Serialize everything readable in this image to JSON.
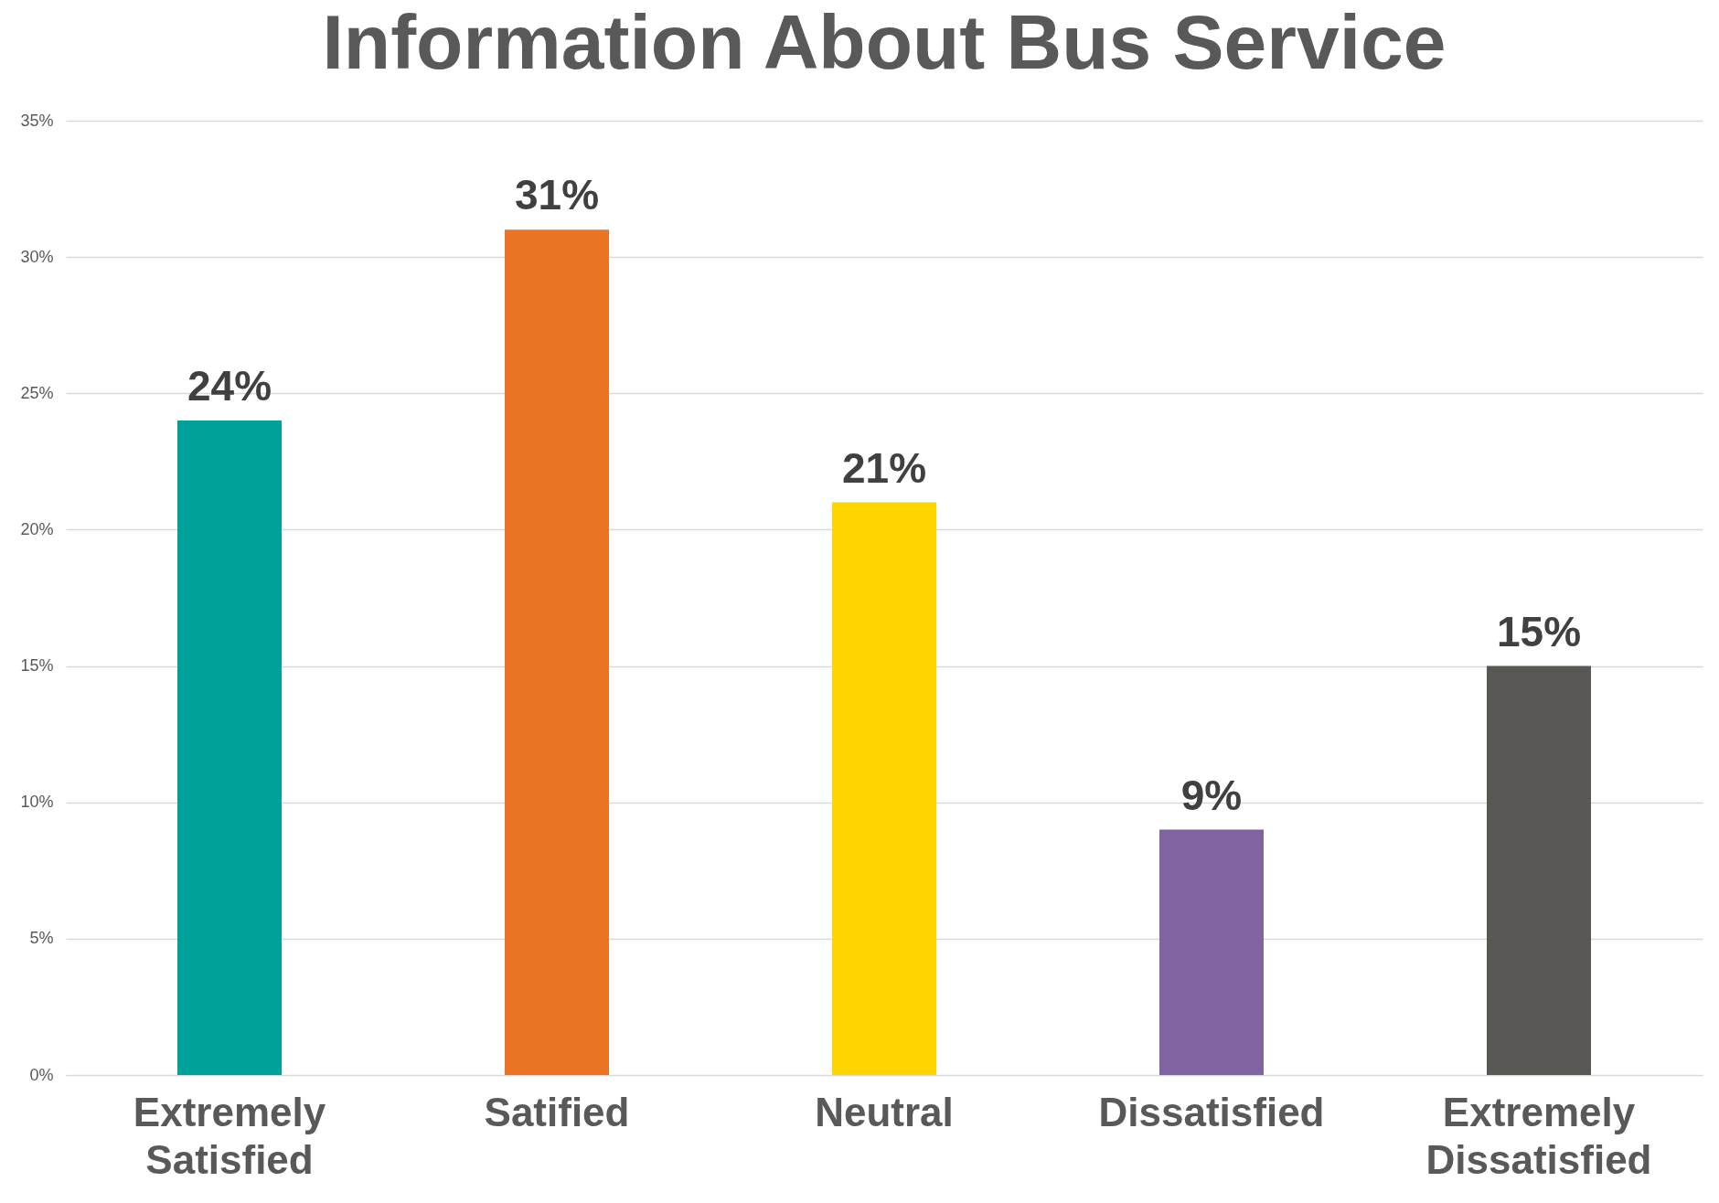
{
  "chart_data": {
    "type": "bar",
    "title": "Information About Bus Service",
    "categories": [
      "Extremely Satisfied",
      "Satified",
      "Neutral",
      "Dissatisfied",
      "Extremely Dissatisfied"
    ],
    "values": [
      24,
      31,
      21,
      9,
      15
    ],
    "value_labels": [
      "24%",
      "31%",
      "21%",
      "9%",
      "15%"
    ],
    "colors": [
      "#00a19a",
      "#e87424",
      "#ffd500",
      "#8064a2",
      "#595855"
    ],
    "ylim": [
      0,
      35
    ],
    "yticks": [
      {
        "value": 0,
        "label": "0%"
      },
      {
        "value": 5,
        "label": "5%"
      },
      {
        "value": 10,
        "label": "10%"
      },
      {
        "value": 15,
        "label": "15%"
      },
      {
        "value": 20,
        "label": "20%"
      },
      {
        "value": 25,
        "label": "25%"
      },
      {
        "value": 30,
        "label": "30%"
      },
      {
        "value": 35,
        "label": "35%"
      }
    ],
    "grid": "y"
  }
}
